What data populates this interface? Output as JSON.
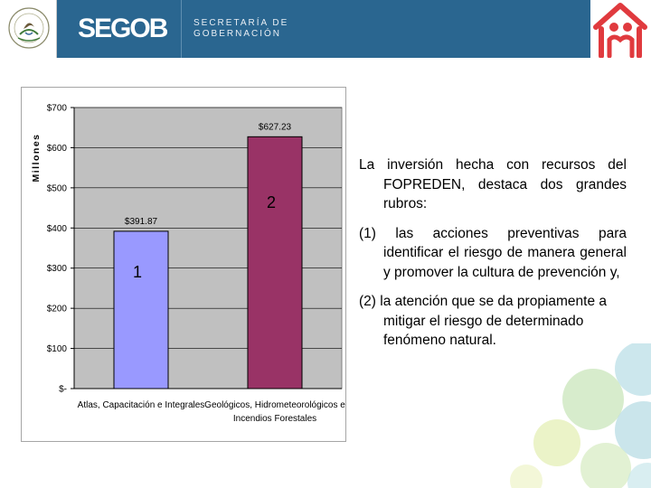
{
  "header": {
    "logo": "SEGOB",
    "subtitle_line1": "SECRETARÍA DE",
    "subtitle_line2": "GOBERNACIÓN",
    "seal_icon": "mexico-coat-of-arms-icon",
    "house_icon": "house-figure-logo-icon",
    "band_color": "#2a6690"
  },
  "chart_data": {
    "type": "bar",
    "categories": [
      "Atlas, Capacitación e Integrales",
      [
        "Geológicos, Hidrometeorológicos e",
        "Incendios Forestales"
      ]
    ],
    "values": [
      391.87,
      627.23
    ],
    "value_labels": [
      "$391.87",
      "$627.23"
    ],
    "bar_numbers": [
      "1",
      "2"
    ],
    "bar_colors": [
      "#9999ff",
      "#993366"
    ],
    "ylabel": "Millones",
    "ylim": [
      0,
      700
    ],
    "yticks": [
      0,
      100,
      200,
      300,
      400,
      500,
      600,
      700
    ],
    "ytick_labels": [
      "$-",
      "$100",
      "$200",
      "$300",
      "$400",
      "$500",
      "$600",
      "$700"
    ],
    "grid": true,
    "plot_bg": "#c0c0c0"
  },
  "text": {
    "p1": "La inversión hecha con recursos del FOPREDEN, destaca dos grandes rubros:",
    "p2": "(1) las acciones preventivas para identificar el riesgo de manera general y promover la cultura de prevención y,",
    "p3": "(2) la atención que se da propiamente a mitigar el riesgo de determinado fenómeno natural."
  }
}
